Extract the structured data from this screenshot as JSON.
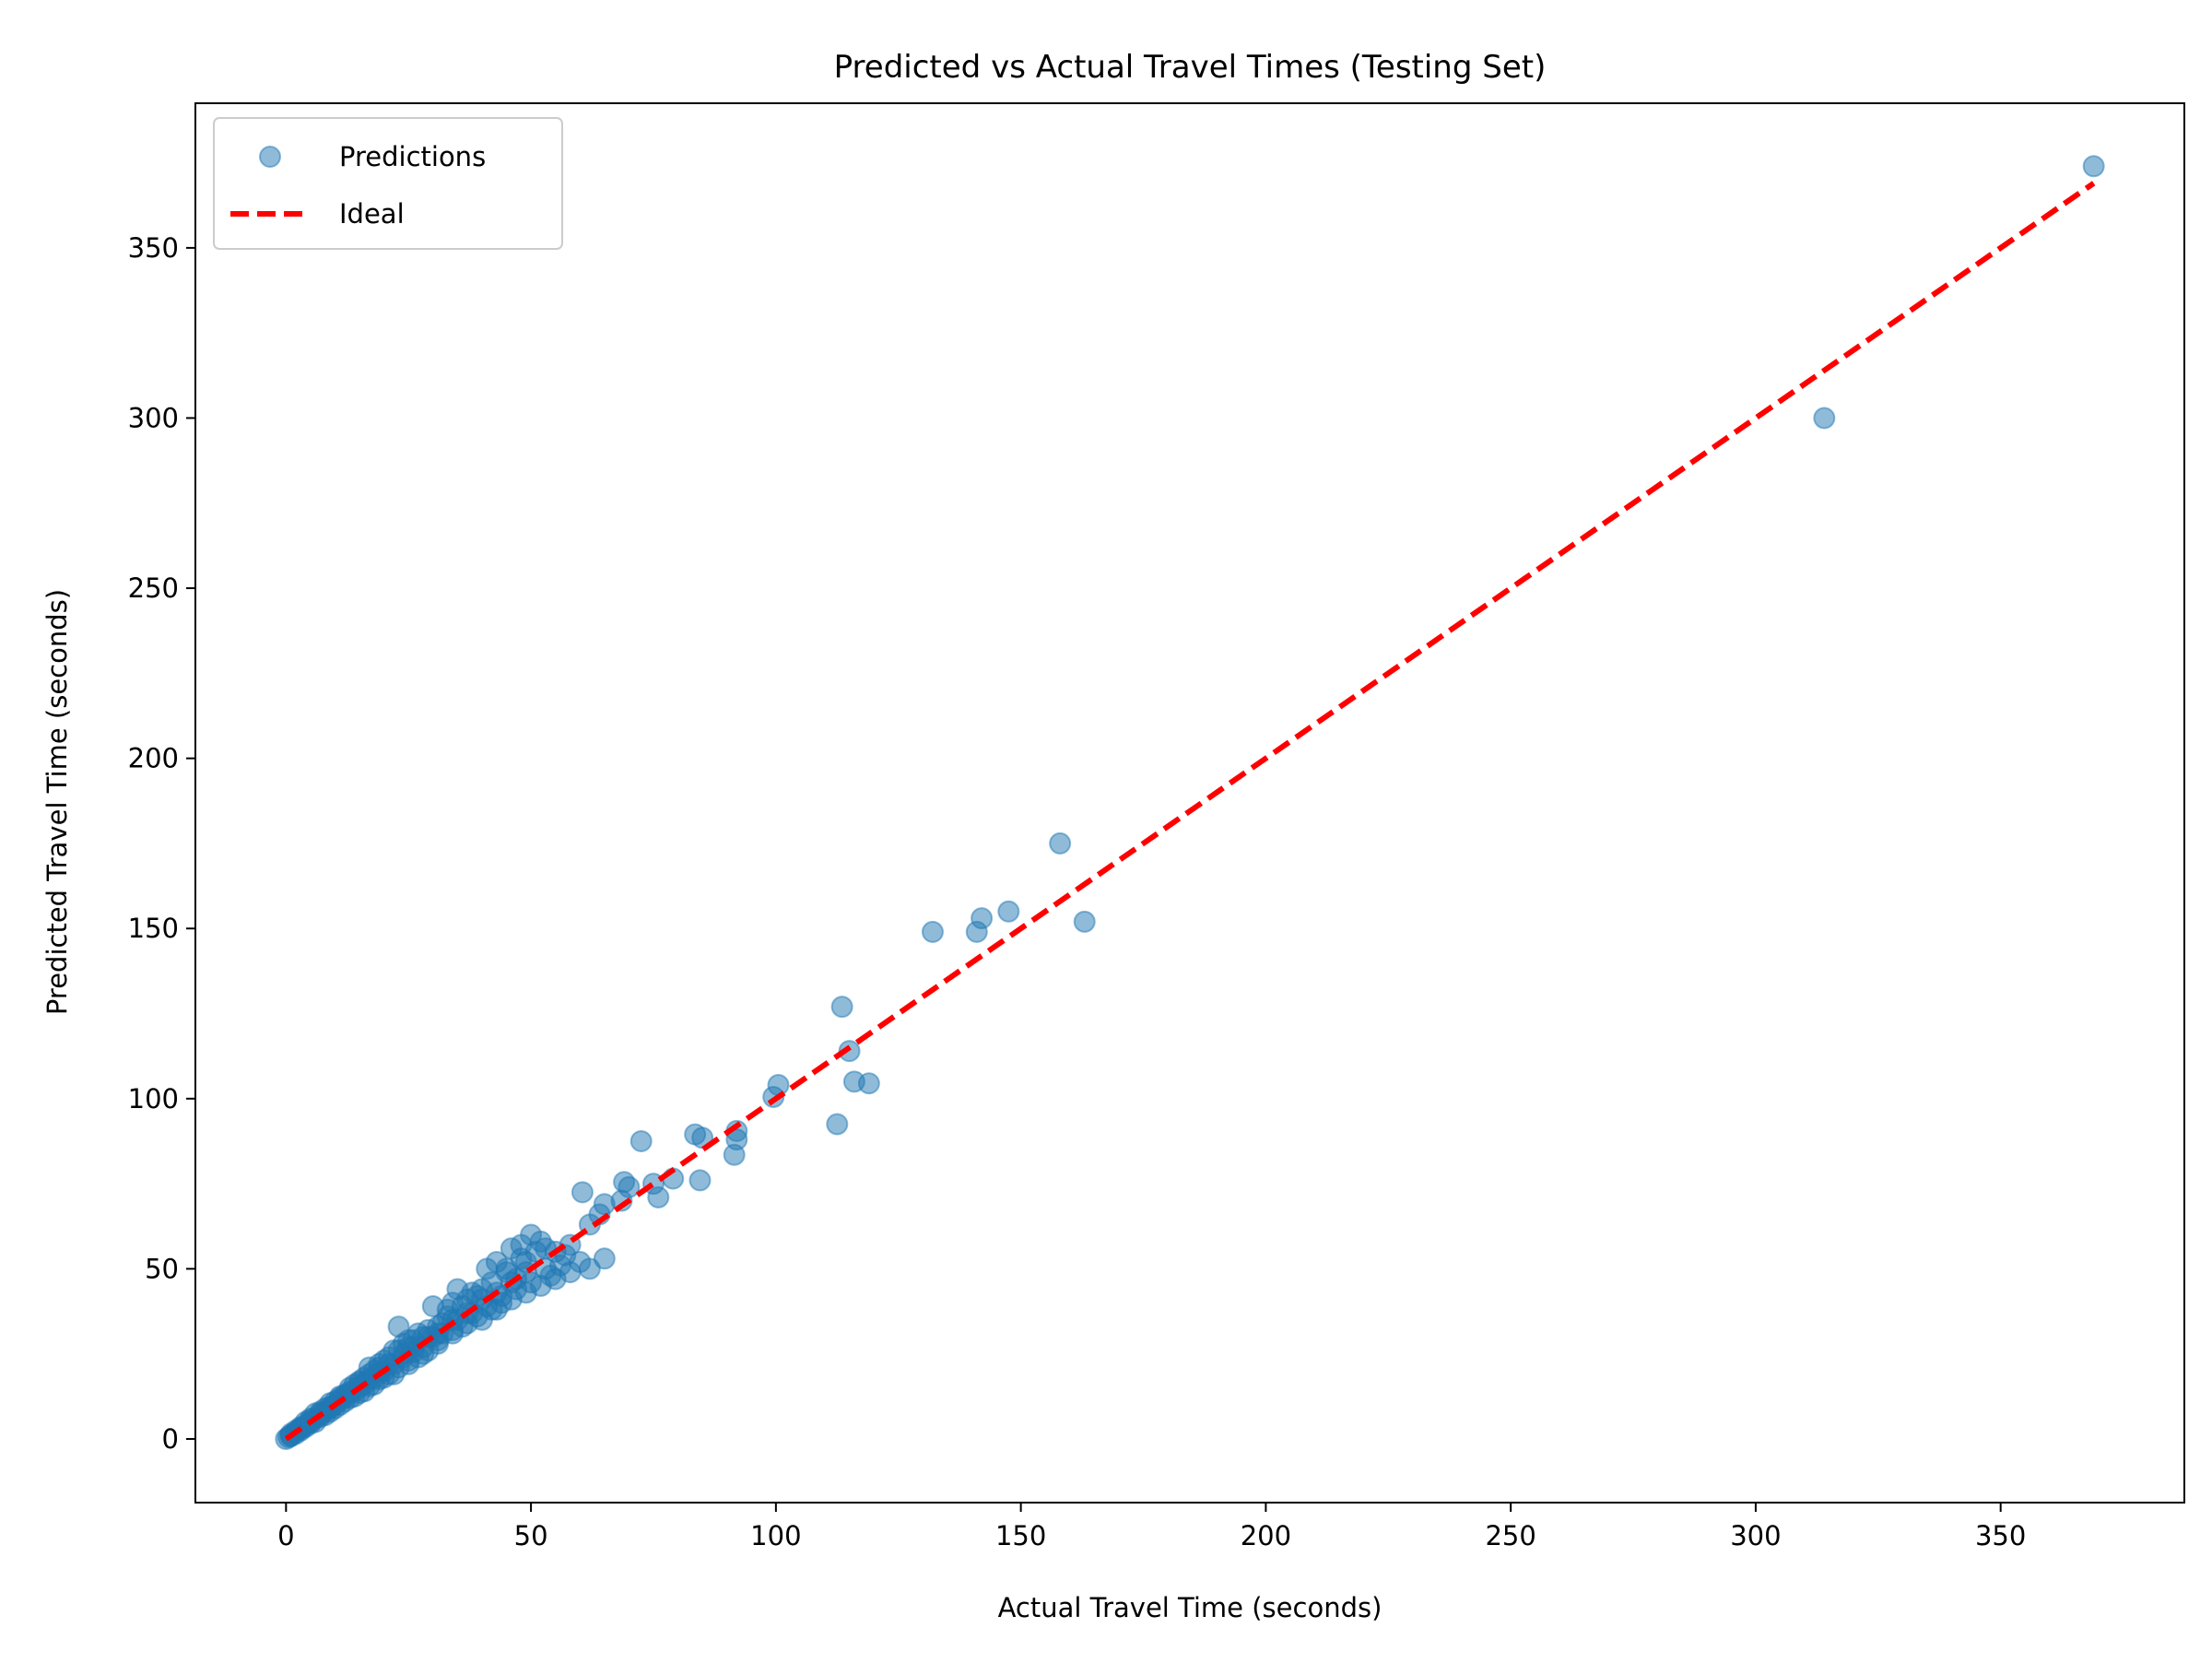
{
  "chart_data": {
    "type": "scatter",
    "title": "Predicted vs Actual Travel Times (Testing Set)",
    "xlabel": "Actual Travel Time (seconds)",
    "ylabel": "Predicted Travel Time (seconds)",
    "xlim": [
      -18.5,
      387.5
    ],
    "ylim": [
      -18.7,
      392.5
    ],
    "xticks": [
      0,
      50,
      100,
      150,
      200,
      250,
      300,
      350
    ],
    "yticks": [
      0,
      50,
      100,
      150,
      200,
      250,
      300,
      350
    ],
    "xtick_labels": [
      "0",
      "50",
      "100",
      "150",
      "200",
      "250",
      "300",
      "350"
    ],
    "ytick_labels": [
      "0",
      "50",
      "100",
      "150",
      "200",
      "250",
      "300",
      "350"
    ],
    "grid": false,
    "legend": {
      "position": "upper-left",
      "entries": [
        "Predictions",
        "Ideal"
      ]
    },
    "series": [
      {
        "name": "Predictions",
        "kind": "scatter",
        "color": "#1f77b4",
        "alpha": 0.5,
        "points": [
          [
            369,
            374
          ],
          [
            314,
            300
          ],
          [
            158,
            175
          ],
          [
            163,
            152
          ],
          [
            147.5,
            155
          ],
          [
            142,
            153
          ],
          [
            141,
            149
          ],
          [
            132,
            149
          ],
          [
            113.5,
            127
          ],
          [
            115,
            114
          ],
          [
            116,
            105
          ],
          [
            119,
            104.5
          ],
          [
            112.5,
            92.5
          ],
          [
            100.5,
            104
          ],
          [
            99.5,
            100.5
          ],
          [
            92,
            90.5
          ],
          [
            92,
            88
          ],
          [
            91.5,
            83.5
          ],
          [
            83.5,
            89.5
          ],
          [
            85,
            88.5
          ],
          [
            72.5,
            87.5
          ],
          [
            76,
            71
          ],
          [
            75,
            75
          ],
          [
            79,
            76.5
          ],
          [
            84.5,
            76
          ],
          [
            69,
            75.5
          ],
          [
            70,
            74
          ],
          [
            68.5,
            70
          ],
          [
            60.5,
            72.5
          ],
          [
            65,
            69
          ],
          [
            64,
            66
          ],
          [
            62,
            63
          ],
          [
            65,
            53
          ],
          [
            58,
            57
          ],
          [
            55,
            55
          ],
          [
            52,
            58
          ],
          [
            50,
            60
          ],
          [
            48,
            57
          ],
          [
            46,
            56
          ],
          [
            45,
            49
          ],
          [
            43,
            52
          ],
          [
            41,
            50
          ],
          [
            40,
            44
          ],
          [
            38,
            43
          ],
          [
            37,
            41
          ],
          [
            35,
            44
          ],
          [
            34,
            40
          ],
          [
            33,
            38
          ],
          [
            32,
            34
          ],
          [
            30,
            39
          ],
          [
            29,
            32
          ],
          [
            28,
            30
          ],
          [
            26,
            29
          ],
          [
            25,
            27
          ],
          [
            24,
            28
          ],
          [
            23,
            33
          ],
          [
            22,
            26
          ],
          [
            20,
            23
          ],
          [
            19,
            22
          ],
          [
            18,
            20
          ],
          [
            17,
            21
          ],
          [
            16,
            18
          ],
          [
            15,
            17
          ],
          [
            14,
            16
          ],
          [
            13,
            15
          ],
          [
            12,
            13
          ],
          [
            11,
            12.5
          ],
          [
            10,
            11
          ],
          [
            9,
            10.5
          ],
          [
            8,
            9
          ],
          [
            7,
            8
          ],
          [
            6,
            7.5
          ],
          [
            5,
            6
          ],
          [
            4,
            5
          ],
          [
            3,
            3.5
          ],
          [
            2,
            2.5
          ],
          [
            1,
            1.5
          ],
          [
            0.5,
            0.5
          ],
          [
            0,
            0
          ],
          [
            54,
            48
          ],
          [
            50,
            46
          ],
          [
            47,
            44
          ],
          [
            44,
            40
          ],
          [
            42,
            38
          ],
          [
            39,
            36
          ],
          [
            36,
            33
          ],
          [
            34,
            31
          ],
          [
            31,
            28
          ],
          [
            29,
            26
          ],
          [
            27,
            24
          ],
          [
            25,
            23
          ],
          [
            23,
            21
          ],
          [
            21,
            19
          ],
          [
            19,
            17.5
          ],
          [
            17,
            15.5
          ],
          [
            15,
            13.5
          ],
          [
            13,
            12
          ],
          [
            11,
            10
          ],
          [
            9,
            8
          ],
          [
            7,
            6.5
          ],
          [
            5,
            4.5
          ],
          [
            3,
            2.5
          ],
          [
            60,
            52
          ],
          [
            56,
            51
          ],
          [
            53,
            50
          ],
          [
            49,
            52
          ],
          [
            47,
            47
          ],
          [
            44,
            42
          ],
          [
            41,
            39
          ],
          [
            38,
            37
          ],
          [
            35,
            35
          ],
          [
            32,
            31
          ],
          [
            30,
            30
          ],
          [
            28,
            27
          ],
          [
            26,
            25.5
          ],
          [
            24,
            24
          ],
          [
            22,
            22
          ],
          [
            20,
            20
          ],
          [
            18,
            18
          ],
          [
            16,
            16
          ],
          [
            14,
            14
          ],
          [
            12,
            12
          ],
          [
            10,
            10
          ],
          [
            8,
            8
          ],
          [
            6,
            6
          ],
          [
            4,
            4
          ],
          [
            2,
            2
          ],
          [
            57,
            54
          ],
          [
            51,
            55
          ],
          [
            48,
            53
          ],
          [
            45,
            50
          ],
          [
            42,
            46
          ],
          [
            39,
            42
          ],
          [
            36,
            39
          ],
          [
            33,
            36
          ],
          [
            31,
            33
          ],
          [
            27,
            31
          ],
          [
            25,
            29
          ],
          [
            23,
            26
          ],
          [
            21,
            24
          ],
          [
            19,
            21
          ],
          [
            17,
            19
          ],
          [
            15,
            16.5
          ],
          [
            13,
            14
          ],
          [
            11,
            12
          ],
          [
            9,
            9.5
          ],
          [
            7,
            7
          ],
          [
            5,
            5.5
          ],
          [
            3,
            3
          ],
          [
            1,
            1
          ],
          [
            62,
            50
          ],
          [
            58,
            49
          ],
          [
            55,
            47
          ],
          [
            52,
            45
          ],
          [
            49,
            43
          ],
          [
            46,
            41
          ],
          [
            43,
            38
          ],
          [
            40,
            35
          ],
          [
            37,
            34
          ],
          [
            34,
            32
          ],
          [
            31,
            29
          ],
          [
            28,
            25
          ],
          [
            25,
            22
          ],
          [
            22,
            19
          ],
          [
            20,
            18
          ],
          [
            18,
            16
          ],
          [
            16,
            14
          ],
          [
            14,
            12.5
          ],
          [
            12,
            11
          ],
          [
            10,
            9
          ],
          [
            8,
            7
          ],
          [
            6,
            5
          ],
          [
            4,
            3.5
          ],
          [
            2,
            1.5
          ],
          [
            53,
            56
          ],
          [
            49,
            49
          ],
          [
            46,
            46
          ],
          [
            43,
            43
          ],
          [
            40,
            41
          ],
          [
            37,
            37
          ],
          [
            34,
            35
          ],
          [
            31,
            31
          ],
          [
            29,
            30
          ],
          [
            26,
            27
          ],
          [
            24,
            25
          ],
          [
            21,
            22
          ],
          [
            19,
            19.5
          ],
          [
            17,
            17.5
          ],
          [
            15,
            15.5
          ],
          [
            13,
            13.5
          ],
          [
            11,
            11.5
          ],
          [
            9,
            9
          ],
          [
            7,
            7.5
          ],
          [
            5,
            5
          ],
          [
            3,
            3.2
          ],
          [
            1,
            0.8
          ]
        ]
      },
      {
        "name": "Ideal",
        "kind": "line",
        "color": "#ff0000",
        "style": "dashed",
        "x": [
          0,
          369
        ],
        "y": [
          0,
          369
        ]
      }
    ]
  }
}
